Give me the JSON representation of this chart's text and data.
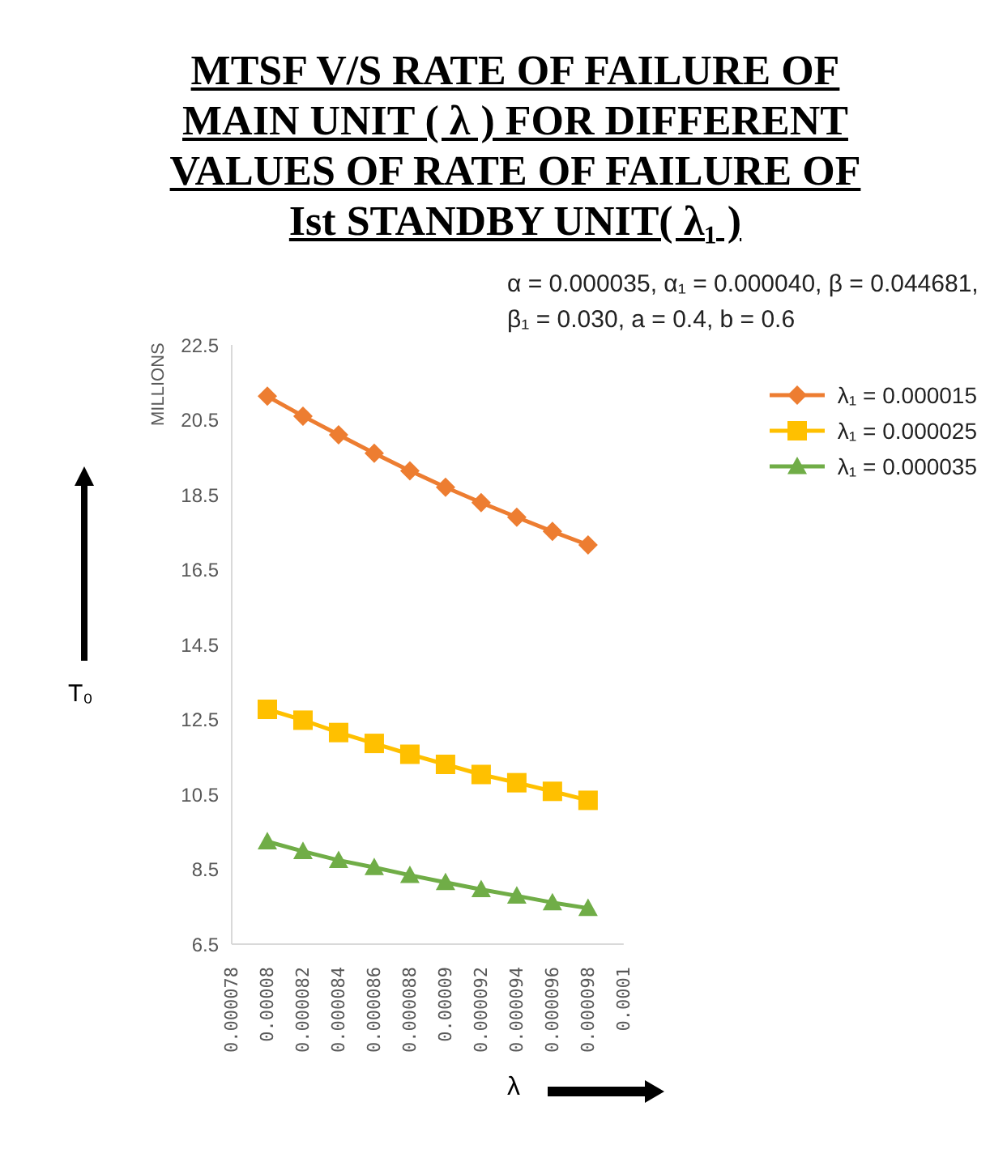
{
  "chart_data": {
    "type": "line",
    "title": "MTSF V/S RATE OF FAILURE OF MAIN UNIT ( λ ) FOR  DIFFERENT VALUES OF RATE  OF FAILURE OF Ist STANDBY UNIT( λ₁ )",
    "xlabel": "λ",
    "ylabel": "T₀",
    "annotations": [
      "α = 0.000035, α₁ = 0.000040, β = 0.044681, β₁ = 0.030, a = 0.4, b = 0.6",
      "MILLIONS"
    ],
    "x": [
      8e-05,
      8.2e-05,
      8.4e-05,
      8.6e-05,
      8.8e-05,
      9e-05,
      9.2e-05,
      9.4e-05,
      9.6e-05,
      9.8e-05
    ],
    "series": [
      {
        "name": "λ₁ = 0.000015",
        "color": "#ed7d31",
        "marker": "diamond",
        "values": [
          21.13,
          20.6,
          20.1,
          19.61,
          19.14,
          18.7,
          18.29,
          17.9,
          17.52,
          17.16
        ]
      },
      {
        "name": "λ₁ = 0.000025",
        "color": "#ffc000",
        "marker": "square",
        "values": [
          12.77,
          12.48,
          12.15,
          11.86,
          11.57,
          11.3,
          11.03,
          10.81,
          10.58,
          10.34
        ]
      },
      {
        "name": "λ₁ = 0.000035",
        "color": "#70ad47",
        "marker": "triangle",
        "values": [
          9.24,
          8.98,
          8.74,
          8.55,
          8.34,
          8.15,
          7.96,
          7.79,
          7.61,
          7.46
        ]
      }
    ],
    "xlim": [
      7.8e-05,
      0.0001
    ],
    "xticks": [
      {
        "value": 7.8e-05,
        "label": "0.000078"
      },
      {
        "value": 8e-05,
        "label": "0.00008"
      },
      {
        "value": 8.2e-05,
        "label": "0.000082"
      },
      {
        "value": 8.4e-05,
        "label": "0.000084"
      },
      {
        "value": 8.6e-05,
        "label": "0.000086"
      },
      {
        "value": 8.8e-05,
        "label": "0.000088"
      },
      {
        "value": 9e-05,
        "label": "0.00009"
      },
      {
        "value": 9.2e-05,
        "label": "0.000092"
      },
      {
        "value": 9.4e-05,
        "label": "0.000094"
      },
      {
        "value": 9.6e-05,
        "label": "0.000096"
      },
      {
        "value": 9.8e-05,
        "label": "0.000098"
      },
      {
        "value": 0.0001,
        "label": "0.0001"
      }
    ],
    "ylim": [
      6.5,
      22.5
    ],
    "yticks": [
      6.5,
      8.5,
      10.5,
      12.5,
      14.5,
      16.5,
      18.5,
      20.5,
      22.5
    ],
    "grid": false,
    "legend": "top right",
    "line_style": "solid"
  }
}
